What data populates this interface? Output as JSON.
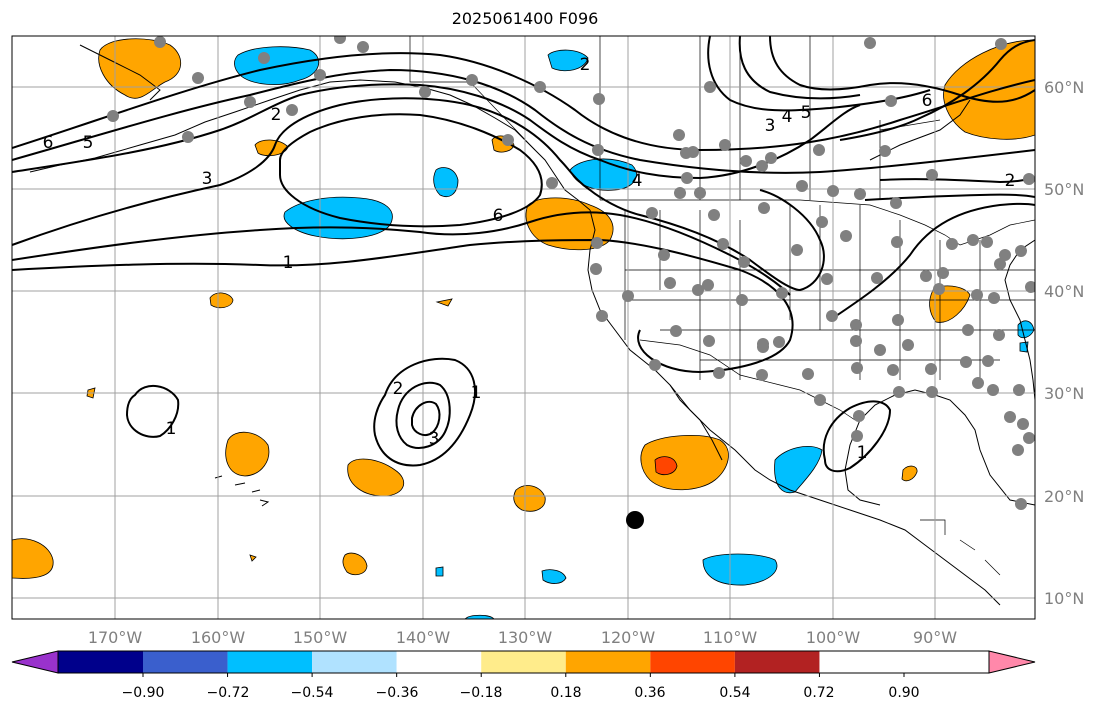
{
  "title": "2025061400 F096",
  "lon_ticks": [
    "170°W",
    "160°W",
    "150°W",
    "140°W",
    "130°W",
    "120°W",
    "110°W",
    "100°W",
    "90°W"
  ],
  "lat_ticks": [
    "60°N",
    "50°N",
    "40°N",
    "30°N",
    "20°N",
    "10°N"
  ],
  "contour_labels": [
    "6",
    "5",
    "3",
    "1",
    "2",
    "2",
    "3",
    "4",
    "5",
    "6",
    "4",
    "6",
    "2",
    "3",
    "1",
    "1",
    "1",
    "2"
  ],
  "colorbar": {
    "colors": [
      "#9932cc",
      "#00008b",
      "#3a5fcd",
      "#00bfff",
      "#b0e2ff",
      "#ffffff",
      "#ffec8b",
      "#ffa500",
      "#ff4500",
      "#b22222",
      "#ff88aa"
    ],
    "labels": [
      "−0.90",
      "−0.72",
      "−0.54",
      "−0.36",
      "−0.18",
      "0.18",
      "0.36",
      "0.54",
      "0.72",
      "0.90"
    ]
  },
  "marker_colors": {
    "stations": "#808080",
    "highlight": "#000000",
    "positive": "#ffa500",
    "positive_strong": "#ff4500",
    "negative": "#00bfff"
  }
}
